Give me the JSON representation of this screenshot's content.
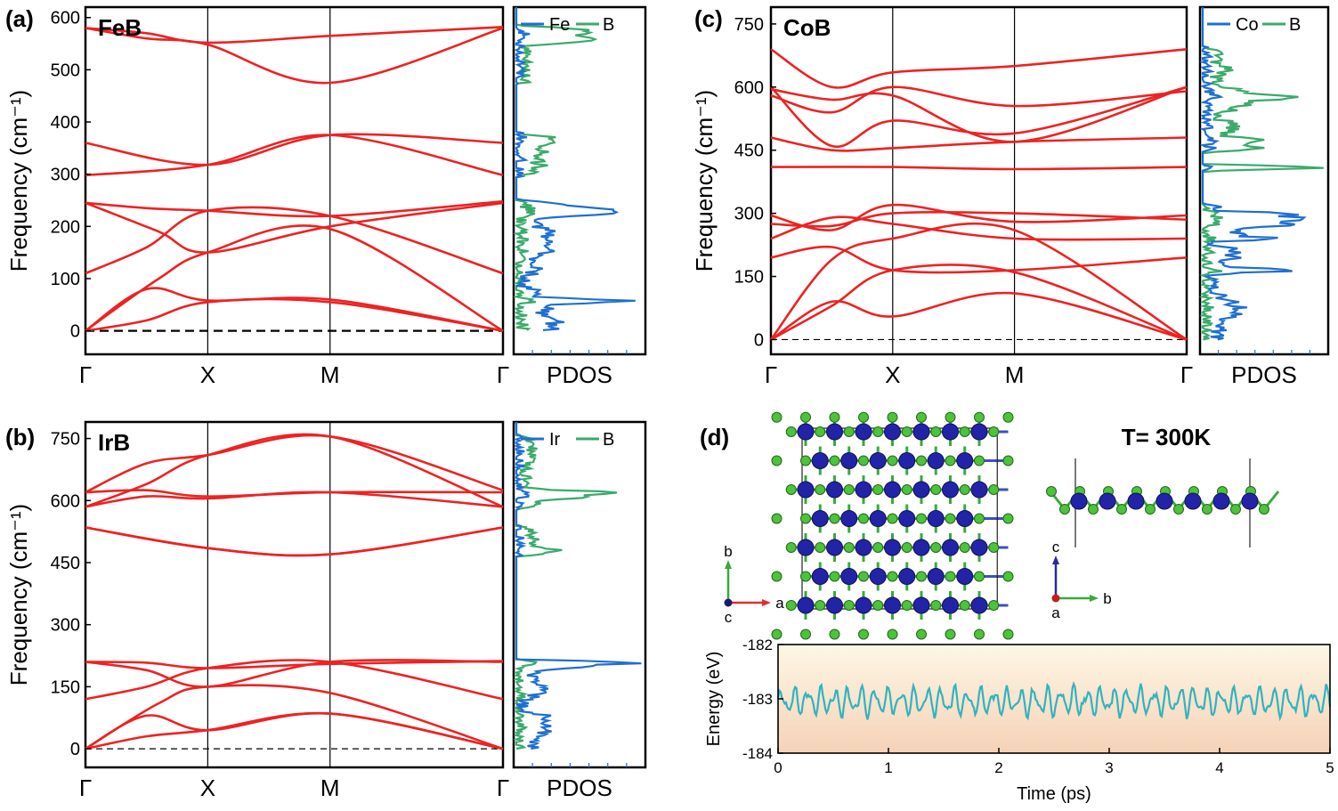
{
  "chart_data": [
    {
      "panel": "(a)",
      "material": "FeB",
      "type": "line",
      "ylabel": "Frequency (cm⁻¹)",
      "ylim": [
        -45,
        620
      ],
      "yticks": [
        0,
        100,
        200,
        300,
        400,
        500,
        600
      ],
      "kpoints": [
        {
          "label": "Γ",
          "x": 0
        },
        {
          "label": "X",
          "x": 1
        },
        {
          "label": "M",
          "x": 2
        },
        {
          "label": "Γ",
          "x": 3.414
        }
      ],
      "bands": [
        [
          [
            0,
            0
          ],
          [
            0.5,
            20
          ],
          [
            1,
            55
          ],
          [
            2,
            55
          ],
          [
            3.414,
            0
          ]
        ],
        [
          [
            0,
            0
          ],
          [
            0.5,
            80
          ],
          [
            1,
            58
          ],
          [
            2,
            60
          ],
          [
            3.414,
            0
          ]
        ],
        [
          [
            0,
            0
          ],
          [
            0.6,
            100
          ],
          [
            1,
            150
          ],
          [
            2,
            195
          ],
          [
            3.414,
            0
          ]
        ],
        [
          [
            0,
            110
          ],
          [
            0.5,
            160
          ],
          [
            1,
            230
          ],
          [
            2,
            220
          ],
          [
            3.414,
            110
          ]
        ],
        [
          [
            0,
            245
          ],
          [
            0.6,
            190
          ],
          [
            1,
            150
          ],
          [
            2,
            200
          ],
          [
            3.414,
            245
          ]
        ],
        [
          [
            0,
            245
          ],
          [
            0.5,
            235
          ],
          [
            1,
            230
          ],
          [
            2,
            220
          ],
          [
            3.414,
            248
          ]
        ],
        [
          [
            0,
            298
          ],
          [
            1,
            318
          ],
          [
            2,
            375
          ],
          [
            3.414,
            298
          ]
        ],
        [
          [
            0,
            360
          ],
          [
            1,
            318
          ],
          [
            2,
            375
          ],
          [
            3.414,
            360
          ]
        ],
        [
          [
            0,
            580
          ],
          [
            0.5,
            560
          ],
          [
            1,
            548
          ],
          [
            2,
            475
          ],
          [
            3.414,
            580
          ]
        ],
        [
          [
            0,
            580
          ],
          [
            0.5,
            570
          ],
          [
            1,
            552
          ],
          [
            2,
            565
          ],
          [
            3.414,
            582
          ]
        ]
      ],
      "pdos": {
        "series": [
          {
            "name": "Fe",
            "color": "#1f6fd1"
          },
          {
            "name": "B",
            "color": "#3aaa6a"
          }
        ],
        "xlabel": "PDOS"
      }
    },
    {
      "panel": "(b)",
      "material": "IrB",
      "type": "line",
      "ylabel": "Frequency (cm⁻¹)",
      "ylim": [
        -45,
        790
      ],
      "yticks": [
        0,
        150,
        300,
        450,
        600,
        750
      ],
      "kpoints": [
        {
          "label": "Γ",
          "x": 0
        },
        {
          "label": "X",
          "x": 1
        },
        {
          "label": "M",
          "x": 2
        },
        {
          "label": "Γ",
          "x": 3.414
        }
      ],
      "bands": [
        [
          [
            0,
            0
          ],
          [
            0.5,
            30
          ],
          [
            1,
            45
          ],
          [
            2,
            85
          ],
          [
            3.414,
            0
          ]
        ],
        [
          [
            0,
            0
          ],
          [
            0.5,
            80
          ],
          [
            1,
            45
          ],
          [
            2,
            85
          ],
          [
            3.414,
            0
          ]
        ],
        [
          [
            0,
            0
          ],
          [
            0.6,
            110
          ],
          [
            1,
            150
          ],
          [
            2,
            135
          ],
          [
            3.414,
            0
          ]
        ],
        [
          [
            0,
            120
          ],
          [
            0.5,
            150
          ],
          [
            1,
            195
          ],
          [
            2,
            210
          ],
          [
            3.414,
            120
          ]
        ],
        [
          [
            0,
            210
          ],
          [
            0.5,
            190
          ],
          [
            1,
            150
          ],
          [
            2,
            210
          ],
          [
            3.414,
            210
          ]
        ],
        [
          [
            0,
            210
          ],
          [
            0.5,
            208
          ],
          [
            1,
            195
          ],
          [
            2,
            205
          ],
          [
            3.414,
            212
          ]
        ],
        [
          [
            0,
            535
          ],
          [
            1,
            485
          ],
          [
            2,
            470
          ],
          [
            3.414,
            535
          ]
        ],
        [
          [
            0,
            535
          ],
          [
            1,
            485
          ],
          [
            2,
            470
          ],
          [
            3.414,
            535
          ]
        ],
        [
          [
            0,
            585
          ],
          [
            0.5,
            640
          ],
          [
            1,
            710
          ],
          [
            2,
            755
          ],
          [
            3.414,
            585
          ]
        ],
        [
          [
            0,
            620
          ],
          [
            0.5,
            625
          ],
          [
            1,
            610
          ],
          [
            2,
            620
          ],
          [
            3.414,
            620
          ]
        ],
        [
          [
            0,
            620
          ],
          [
            0.5,
            690
          ],
          [
            1,
            710
          ],
          [
            2,
            755
          ],
          [
            3.414,
            625
          ]
        ],
        [
          [
            0,
            585
          ],
          [
            0.5,
            610
          ],
          [
            1,
            605
          ],
          [
            2,
            620
          ],
          [
            3.414,
            585
          ]
        ]
      ],
      "pdos": {
        "series": [
          {
            "name": "Ir",
            "color": "#1f6fd1"
          },
          {
            "name": "B",
            "color": "#3aaa6a"
          }
        ],
        "xlabel": "PDOS"
      }
    },
    {
      "panel": "(c)",
      "material": "CoB",
      "type": "line",
      "ylabel": "Frequency (cm⁻¹)",
      "ylim": [
        -35,
        790
      ],
      "yticks": [
        0,
        150,
        300,
        450,
        600,
        750
      ],
      "kpoints": [
        {
          "label": "Γ",
          "x": 0
        },
        {
          "label": "X",
          "x": 1
        },
        {
          "label": "M",
          "x": 2
        },
        {
          "label": "Γ",
          "x": 3.414
        }
      ],
      "bands": [
        [
          [
            0,
            0
          ],
          [
            0.5,
            90
          ],
          [
            1,
            55
          ],
          [
            2,
            110
          ],
          [
            3.414,
            0
          ]
        ],
        [
          [
            0,
            0
          ],
          [
            0.5,
            80
          ],
          [
            1,
            165
          ],
          [
            2,
            160
          ],
          [
            3.414,
            0
          ]
        ],
        [
          [
            0,
            0
          ],
          [
            0.5,
            190
          ],
          [
            1,
            240
          ],
          [
            2,
            260
          ],
          [
            3.414,
            0
          ]
        ],
        [
          [
            0,
            195
          ],
          [
            0.5,
            220
          ],
          [
            1,
            165
          ],
          [
            2,
            165
          ],
          [
            3.414,
            195
          ]
        ],
        [
          [
            0,
            240
          ],
          [
            0.5,
            290
          ],
          [
            1,
            275
          ],
          [
            2,
            240
          ],
          [
            3.414,
            240
          ]
        ],
        [
          [
            0,
            295
          ],
          [
            0.5,
            260
          ],
          [
            1,
            320
          ],
          [
            2,
            280
          ],
          [
            3.414,
            295
          ]
        ],
        [
          [
            0,
            275
          ],
          [
            0.5,
            270
          ],
          [
            1,
            300
          ],
          [
            2,
            300
          ],
          [
            3.414,
            285
          ]
        ],
        [
          [
            0,
            410
          ],
          [
            1,
            410
          ],
          [
            2,
            405
          ],
          [
            3.414,
            410
          ]
        ],
        [
          [
            0,
            480
          ],
          [
            0.5,
            450
          ],
          [
            1,
            455
          ],
          [
            2,
            470
          ],
          [
            3.414,
            480
          ]
        ],
        [
          [
            0,
            600
          ],
          [
            0.5,
            460
          ],
          [
            1,
            520
          ],
          [
            2,
            490
          ],
          [
            3.414,
            600
          ]
        ],
        [
          [
            0,
            580
          ],
          [
            0.5,
            540
          ],
          [
            1,
            600
          ],
          [
            2,
            555
          ],
          [
            3.414,
            590
          ]
        ],
        [
          [
            0,
            595
          ],
          [
            0.5,
            570
          ],
          [
            1,
            580
          ],
          [
            2,
            470
          ],
          [
            3.414,
            600
          ]
        ],
        [
          [
            0,
            690
          ],
          [
            0.5,
            600
          ],
          [
            1,
            635
          ],
          [
            2,
            650
          ],
          [
            3.414,
            690
          ]
        ]
      ],
      "pdos": {
        "series": [
          {
            "name": "Co",
            "color": "#1f6fd1"
          },
          {
            "name": "B",
            "color": "#3aaa6a"
          }
        ],
        "xlabel": "PDOS"
      }
    },
    {
      "panel": "(d)",
      "type": "line",
      "title": "T= 300K",
      "xlabel": "Time (ps)",
      "ylabel": "Energy (eV)",
      "xlim": [
        0,
        5
      ],
      "ylim": [
        -184,
        -182
      ],
      "xticks": [
        0,
        1,
        2,
        3,
        4,
        5
      ],
      "yticks": [
        -182,
        -183,
        -184
      ],
      "series": [
        {
          "color": "#30b3c0",
          "mean": -183.05,
          "amplitude": 0.35
        }
      ],
      "axes_top_view": {
        "up": "b",
        "right": "a",
        "out": "c"
      },
      "axes_side_view": {
        "up": "c",
        "right": "b",
        "out": "a"
      }
    }
  ]
}
